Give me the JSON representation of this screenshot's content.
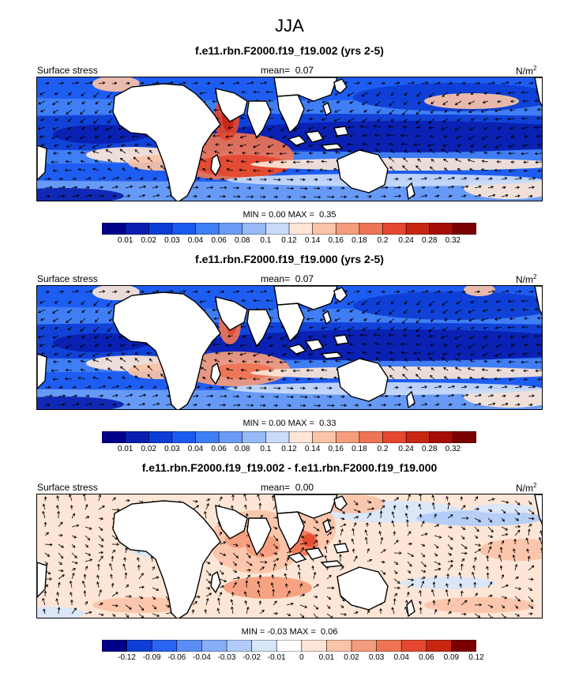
{
  "title": "JJA",
  "colors": {
    "full": [
      "#00008b",
      "#0a1eb0",
      "#0d3dd4",
      "#1b5af0",
      "#3f7ef5",
      "#6a9cf6",
      "#98bbf7",
      "#c9dbf8",
      "#fde6d6",
      "#fbc3a7",
      "#f59c7c",
      "#ee7455",
      "#e44830",
      "#c92612",
      "#a60d05",
      "#7a0000"
    ],
    "diff": [
      "#00008b",
      "#0d3dd4",
      "#2a64f2",
      "#5a8ef6",
      "#86aff7",
      "#b1ccf8",
      "#d8e6fa",
      "#ffffff",
      "#fde6d6",
      "#fbc3a7",
      "#f59c7c",
      "#ee7455",
      "#e44830",
      "#c92612",
      "#7a0000"
    ]
  },
  "chart_data": [
    {
      "type": "heatmap",
      "title": "f.e11.rbn.F2000.f19_f19.002 (yrs 2-5)",
      "left_label": "Surface stress",
      "mean_label": "mean=",
      "mean_value": "0.07",
      "units": "N/m",
      "units_exp": "2",
      "min_label": "MIN =",
      "min_value": "0.00",
      "max_label": "MAX =",
      "max_value": "0.35",
      "colorbar_ticks": [
        "0.01",
        "0.02",
        "0.03",
        "0.04",
        "0.06",
        "0.08",
        "0.1",
        "0.12",
        "0.14",
        "0.16",
        "0.18",
        "0.2",
        "0.24",
        "0.28",
        "0.32"
      ]
    },
    {
      "type": "heatmap",
      "title": "f.e11.rbn.F2000.f19_f19.000 (yrs 2-5)",
      "left_label": "Surface stress",
      "mean_label": "mean=",
      "mean_value": "0.07",
      "units": "N/m",
      "units_exp": "2",
      "min_label": "MIN =",
      "min_value": "0.00",
      "max_label": "MAX =",
      "max_value": "0.33",
      "colorbar_ticks": [
        "0.01",
        "0.02",
        "0.03",
        "0.04",
        "0.06",
        "0.08",
        "0.1",
        "0.12",
        "0.14",
        "0.16",
        "0.18",
        "0.2",
        "0.24",
        "0.28",
        "0.32"
      ]
    },
    {
      "type": "heatmap",
      "title": "f.e11.rbn.F2000.f19_f19.002 - f.e11.rbn.F2000.f19_f19.000",
      "left_label": "Surface stress",
      "mean_label": "mean=",
      "mean_value": "0.00",
      "units": "N/m",
      "units_exp": "2",
      "min_label": "MIN =",
      "min_value": "-0.03",
      "max_label": "MAX =",
      "max_value": "0.06",
      "colorbar_ticks": [
        "-0.12",
        "-0.09",
        "-0.06",
        "-0.04",
        "-0.03",
        "-0.02",
        "-0.01",
        "0",
        "0.01",
        "0.02",
        "0.03",
        "0.04",
        "0.06",
        "0.09",
        "0.12"
      ]
    }
  ]
}
